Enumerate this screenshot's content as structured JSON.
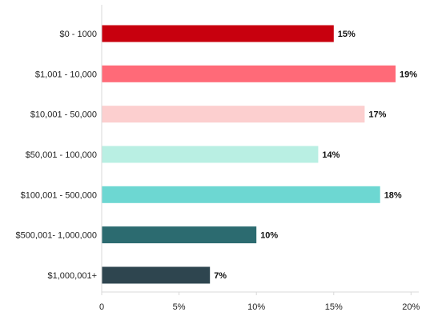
{
  "chart_data": {
    "type": "bar",
    "orientation": "horizontal",
    "categories": [
      "$0 - 1000",
      "$1,001 - 10,000",
      "$10,001 - 50,000",
      "$50,001 - 100,000",
      "$100,001 - 500,000",
      "$500,001- 1,000,000",
      "$1,000,001+"
    ],
    "values": [
      15,
      19,
      17,
      14,
      18,
      10,
      7
    ],
    "value_labels": [
      "15%",
      "19%",
      "17%",
      "14%",
      "18%",
      "10%",
      "7%"
    ],
    "colors": [
      "#c8000e",
      "#ff6a78",
      "#fccfcf",
      "#b9efe3",
      "#6dd7d2",
      "#2c6b70",
      "#2e454f"
    ],
    "x_ticks": [
      0,
      5,
      10,
      15,
      20
    ],
    "x_tick_labels": [
      "0",
      "5%",
      "10%",
      "15%",
      "20%"
    ],
    "xlim": [
      0,
      20.5
    ],
    "grid": false,
    "legend": false
  }
}
